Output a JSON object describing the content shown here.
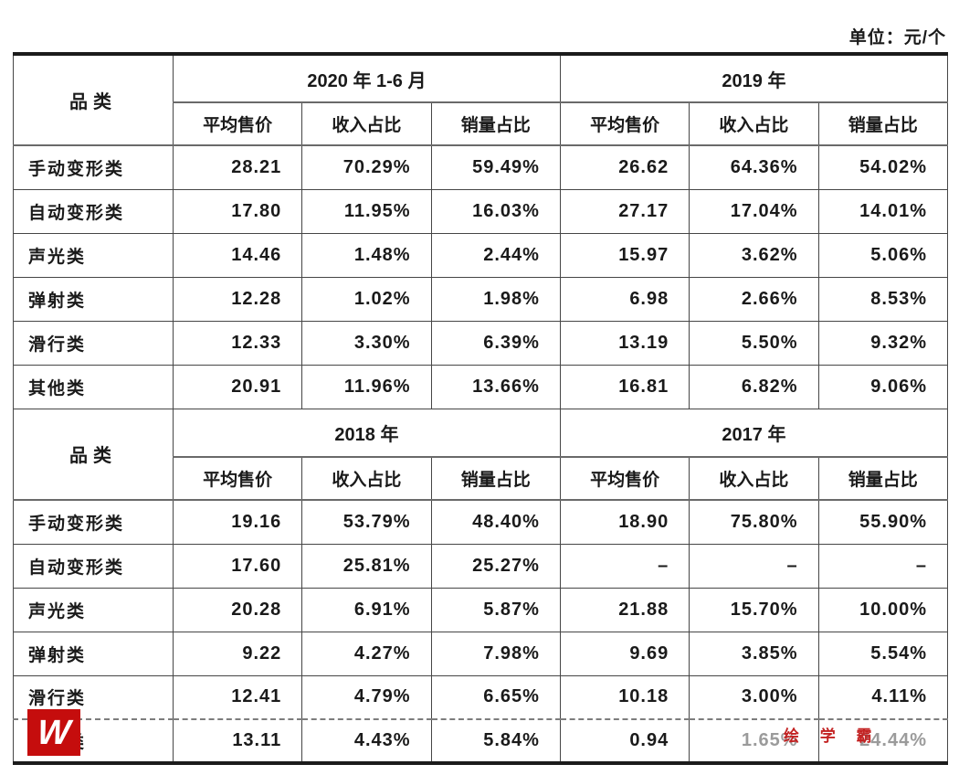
{
  "unit_label": "单位：元/个",
  "watermark": {
    "text": "绘 学 霸",
    "color": "#c32222"
  },
  "logo": {
    "letter": "W",
    "background": "#c50d0d"
  },
  "table": {
    "category_header": "品类",
    "sub_headers": [
      "平均售价",
      "收入占比",
      "销量占比"
    ],
    "sections": [
      {
        "periods": [
          "2020 年 1-6 月",
          "2019 年"
        ],
        "rows": [
          {
            "category": "手动变形类",
            "values": [
              "28.21",
              "70.29%",
              "59.49%",
              "26.62",
              "64.36%",
              "54.02%"
            ]
          },
          {
            "category": "自动变形类",
            "values": [
              "17.80",
              "11.95%",
              "16.03%",
              "27.17",
              "17.04%",
              "14.01%"
            ]
          },
          {
            "category": "声光类",
            "values": [
              "14.46",
              "1.48%",
              "2.44%",
              "15.97",
              "3.62%",
              "5.06%"
            ]
          },
          {
            "category": "弹射类",
            "values": [
              "12.28",
              "1.02%",
              "1.98%",
              "6.98",
              "2.66%",
              "8.53%"
            ]
          },
          {
            "category": "滑行类",
            "values": [
              "12.33",
              "3.30%",
              "6.39%",
              "13.19",
              "5.50%",
              "9.32%"
            ]
          },
          {
            "category": "其他类",
            "values": [
              "20.91",
              "11.96%",
              "13.66%",
              "16.81",
              "6.82%",
              "9.06%"
            ]
          }
        ]
      },
      {
        "periods": [
          "2018 年",
          "2017 年"
        ],
        "rows": [
          {
            "category": "手动变形类",
            "values": [
              "19.16",
              "53.79%",
              "48.40%",
              "18.90",
              "75.80%",
              "55.90%"
            ]
          },
          {
            "category": "自动变形类",
            "values": [
              "17.60",
              "25.81%",
              "25.27%",
              "–",
              "–",
              "–"
            ]
          },
          {
            "category": "声光类",
            "values": [
              "20.28",
              "6.91%",
              "5.87%",
              "21.88",
              "15.70%",
              "10.00%"
            ]
          },
          {
            "category": "弹射类",
            "values": [
              "9.22",
              "4.27%",
              "7.98%",
              "9.69",
              "3.85%",
              "5.54%"
            ]
          },
          {
            "category": "滑行类",
            "values": [
              "12.41",
              "4.79%",
              "6.65%",
              "10.18",
              "3.00%",
              "4.11%"
            ]
          },
          {
            "category": "其他类",
            "values": [
              "13.11",
              "4.43%",
              "5.84%",
              "0.94",
              "1.65%",
              "24.44%"
            ],
            "faded_cols": [
              4,
              5
            ],
            "dashed_top": true
          }
        ]
      }
    ]
  }
}
